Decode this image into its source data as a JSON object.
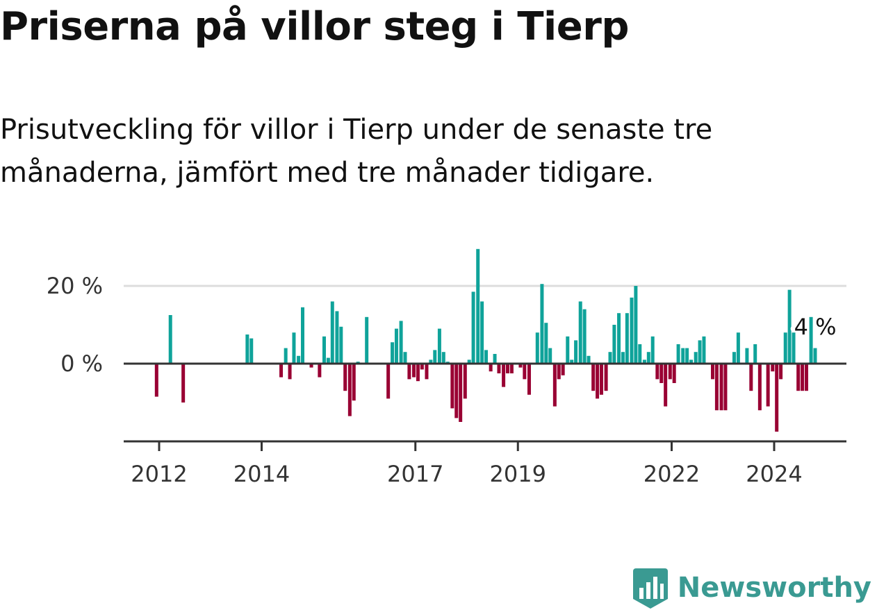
{
  "header": {
    "title": "Priserna på villor steg i Tierp",
    "subtitle": "Prisutveckling för villor i Tierp under de senaste tre månaderna, jämfört med tre månader tidigare."
  },
  "branding": {
    "name": "Newsworthy",
    "logo_icon": "bar-chart-badge-icon"
  },
  "colors": {
    "positive": "#0fa39a",
    "negative": "#990033",
    "grid": "#dddddd",
    "axis": "#333333",
    "brand": "#3a9a92"
  },
  "chart_data": {
    "type": "bar",
    "unit": "%",
    "y_tick_values": [
      0,
      20
    ],
    "y_tick_labels": [
      "0 %",
      "20 %"
    ],
    "ylim": [
      -20,
      30
    ],
    "x_tick_years": [
      2012,
      2014,
      2017,
      2019,
      2022,
      2024
    ],
    "x_tick_labels": [
      "2012",
      "2014",
      "2017",
      "2019",
      "2022",
      "2024"
    ],
    "x_range": [
      2011.25,
      2025.4
    ],
    "annotation": {
      "label": "4 %",
      "year": 2024.7,
      "value": 9.5
    },
    "bars": [
      {
        "x": 2011.95,
        "v": -8.5
      },
      {
        "x": 2012.22,
        "v": 12.5
      },
      {
        "x": 2012.47,
        "v": -10
      },
      {
        "x": 2013.72,
        "v": 7.5
      },
      {
        "x": 2013.8,
        "v": 6.5
      },
      {
        "x": 2014.38,
        "v": -3.5
      },
      {
        "x": 2014.47,
        "v": 4
      },
      {
        "x": 2014.55,
        "v": -4
      },
      {
        "x": 2014.63,
        "v": 8
      },
      {
        "x": 2014.72,
        "v": 2
      },
      {
        "x": 2014.8,
        "v": 14.5
      },
      {
        "x": 2014.97,
        "v": -1
      },
      {
        "x": 2015.13,
        "v": -3.5
      },
      {
        "x": 2015.22,
        "v": 7
      },
      {
        "x": 2015.3,
        "v": 1.5
      },
      {
        "x": 2015.38,
        "v": 16
      },
      {
        "x": 2015.47,
        "v": 13.5
      },
      {
        "x": 2015.55,
        "v": 9.5
      },
      {
        "x": 2015.63,
        "v": -7
      },
      {
        "x": 2015.72,
        "v": -13.5
      },
      {
        "x": 2015.8,
        "v": -9.5
      },
      {
        "x": 2015.88,
        "v": 0.5
      },
      {
        "x": 2016.05,
        "v": 12
      },
      {
        "x": 2016.47,
        "v": -9
      },
      {
        "x": 2016.55,
        "v": 5.5
      },
      {
        "x": 2016.63,
        "v": 9
      },
      {
        "x": 2016.72,
        "v": 11
      },
      {
        "x": 2016.8,
        "v": 3
      },
      {
        "x": 2016.88,
        "v": -4
      },
      {
        "x": 2016.97,
        "v": -3.5
      },
      {
        "x": 2017.05,
        "v": -4.5
      },
      {
        "x": 2017.13,
        "v": -1.5
      },
      {
        "x": 2017.22,
        "v": -4
      },
      {
        "x": 2017.3,
        "v": 1
      },
      {
        "x": 2017.38,
        "v": 3.5
      },
      {
        "x": 2017.47,
        "v": 9
      },
      {
        "x": 2017.55,
        "v": 3
      },
      {
        "x": 2017.63,
        "v": 0.5
      },
      {
        "x": 2017.72,
        "v": -11.5
      },
      {
        "x": 2017.8,
        "v": -14
      },
      {
        "x": 2017.88,
        "v": -15
      },
      {
        "x": 2017.97,
        "v": -9
      },
      {
        "x": 2018.05,
        "v": 1
      },
      {
        "x": 2018.13,
        "v": 18.5
      },
      {
        "x": 2018.22,
        "v": 29.5
      },
      {
        "x": 2018.3,
        "v": 16
      },
      {
        "x": 2018.38,
        "v": 3.5
      },
      {
        "x": 2018.47,
        "v": -2
      },
      {
        "x": 2018.55,
        "v": 2.5
      },
      {
        "x": 2018.63,
        "v": -2.5
      },
      {
        "x": 2018.72,
        "v": -6
      },
      {
        "x": 2018.8,
        "v": -2.5
      },
      {
        "x": 2018.88,
        "v": -2.5
      },
      {
        "x": 2019.05,
        "v": -1
      },
      {
        "x": 2019.13,
        "v": -4
      },
      {
        "x": 2019.22,
        "v": -8
      },
      {
        "x": 2019.38,
        "v": 8
      },
      {
        "x": 2019.47,
        "v": 20.5
      },
      {
        "x": 2019.55,
        "v": 10.5
      },
      {
        "x": 2019.63,
        "v": 4
      },
      {
        "x": 2019.72,
        "v": -11
      },
      {
        "x": 2019.8,
        "v": -4
      },
      {
        "x": 2019.88,
        "v": -3
      },
      {
        "x": 2019.97,
        "v": 7
      },
      {
        "x": 2020.05,
        "v": 1
      },
      {
        "x": 2020.13,
        "v": 6
      },
      {
        "x": 2020.22,
        "v": 16
      },
      {
        "x": 2020.3,
        "v": 14
      },
      {
        "x": 2020.38,
        "v": 2
      },
      {
        "x": 2020.47,
        "v": -7
      },
      {
        "x": 2020.55,
        "v": -9
      },
      {
        "x": 2020.63,
        "v": -8
      },
      {
        "x": 2020.72,
        "v": -7
      },
      {
        "x": 2020.8,
        "v": 3
      },
      {
        "x": 2020.88,
        "v": 10
      },
      {
        "x": 2020.97,
        "v": 13
      },
      {
        "x": 2021.05,
        "v": 3
      },
      {
        "x": 2021.13,
        "v": 13
      },
      {
        "x": 2021.22,
        "v": 17
      },
      {
        "x": 2021.3,
        "v": 20
      },
      {
        "x": 2021.38,
        "v": 5
      },
      {
        "x": 2021.47,
        "v": 1
      },
      {
        "x": 2021.55,
        "v": 3
      },
      {
        "x": 2021.63,
        "v": 7
      },
      {
        "x": 2021.72,
        "v": -4
      },
      {
        "x": 2021.8,
        "v": -5
      },
      {
        "x": 2021.88,
        "v": -11
      },
      {
        "x": 2021.97,
        "v": -4
      },
      {
        "x": 2022.05,
        "v": -5
      },
      {
        "x": 2022.13,
        "v": 5
      },
      {
        "x": 2022.22,
        "v": 4
      },
      {
        "x": 2022.3,
        "v": 4
      },
      {
        "x": 2022.38,
        "v": 1
      },
      {
        "x": 2022.47,
        "v": 3
      },
      {
        "x": 2022.55,
        "v": 6
      },
      {
        "x": 2022.63,
        "v": 7
      },
      {
        "x": 2022.8,
        "v": -4
      },
      {
        "x": 2022.88,
        "v": -12
      },
      {
        "x": 2022.97,
        "v": -12
      },
      {
        "x": 2023.05,
        "v": -12
      },
      {
        "x": 2023.22,
        "v": 3
      },
      {
        "x": 2023.3,
        "v": 8
      },
      {
        "x": 2023.47,
        "v": 4
      },
      {
        "x": 2023.55,
        "v": -7
      },
      {
        "x": 2023.63,
        "v": 5
      },
      {
        "x": 2023.72,
        "v": -12
      },
      {
        "x": 2023.88,
        "v": -11
      },
      {
        "x": 2023.97,
        "v": -2
      },
      {
        "x": 2024.05,
        "v": -17.5
      },
      {
        "x": 2024.13,
        "v": -4
      },
      {
        "x": 2024.22,
        "v": 8
      },
      {
        "x": 2024.3,
        "v": 19
      },
      {
        "x": 2024.38,
        "v": 8
      },
      {
        "x": 2024.47,
        "v": -7
      },
      {
        "x": 2024.55,
        "v": -7
      },
      {
        "x": 2024.63,
        "v": -7
      },
      {
        "x": 2024.72,
        "v": 12
      },
      {
        "x": 2024.8,
        "v": 4
      }
    ]
  }
}
